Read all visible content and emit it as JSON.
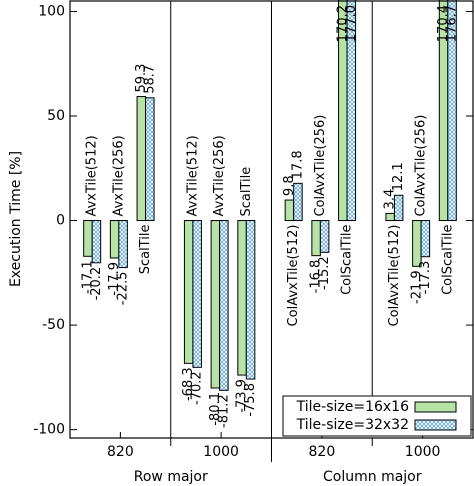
{
  "chart_data": {
    "type": "bar",
    "y_label": "Execution Time [%]",
    "categories": [
      "AvxTile(512)",
      "AvxTile(256)",
      "ScalTile",
      "AvxTile(512)",
      "AvxTile(256)",
      "ScalTile",
      "ColAvxTile(512)",
      "ColAvxTile(256)",
      "ColScalTile",
      "ColAvxTile(512)",
      "ColAvxTile(256)",
      "ColScalTile"
    ],
    "groups": [
      "820",
      "1000",
      "820",
      "1000"
    ],
    "supergroups": [
      "Row major",
      "Column major"
    ],
    "series": [
      {
        "name": "Tile-size=16x16",
        "color": "#b8e3a6",
        "pattern": "solid",
        "values": [
          -17.1,
          -17.9,
          59.3,
          -68.3,
          -80.1,
          -73.9,
          9.8,
          -16.8,
          170.2,
          3.4,
          -21.9,
          170.4
        ],
        "value_labels": [
          "-17.1",
          "-17.9",
          "59.3",
          "-68.3",
          "-80.1",
          "-73.9",
          "9.8",
          "-16.8",
          "170.2",
          "3.4",
          "-21.9",
          "170.4"
        ]
      },
      {
        "name": "Tile-size=32x32",
        "color": "#6aaee0",
        "pattern": "crosshatch",
        "values": [
          -20.2,
          -22.5,
          58.7,
          -70.2,
          -81.2,
          -75.8,
          17.8,
          -15.2,
          177.0,
          12.1,
          -17.3,
          176.7
        ],
        "value_labels": [
          "-20.2",
          "-22.5",
          "58.7",
          "-70.2",
          "-81.2",
          "-75.8",
          "17.8",
          "-15.2",
          "177.0",
          "12.1",
          "-17.3",
          "176.7"
        ]
      }
    ],
    "ylim": [
      -104,
      105
    ],
    "yticks": [
      -100,
      -50,
      0,
      50,
      100
    ],
    "legend": "lower right"
  }
}
